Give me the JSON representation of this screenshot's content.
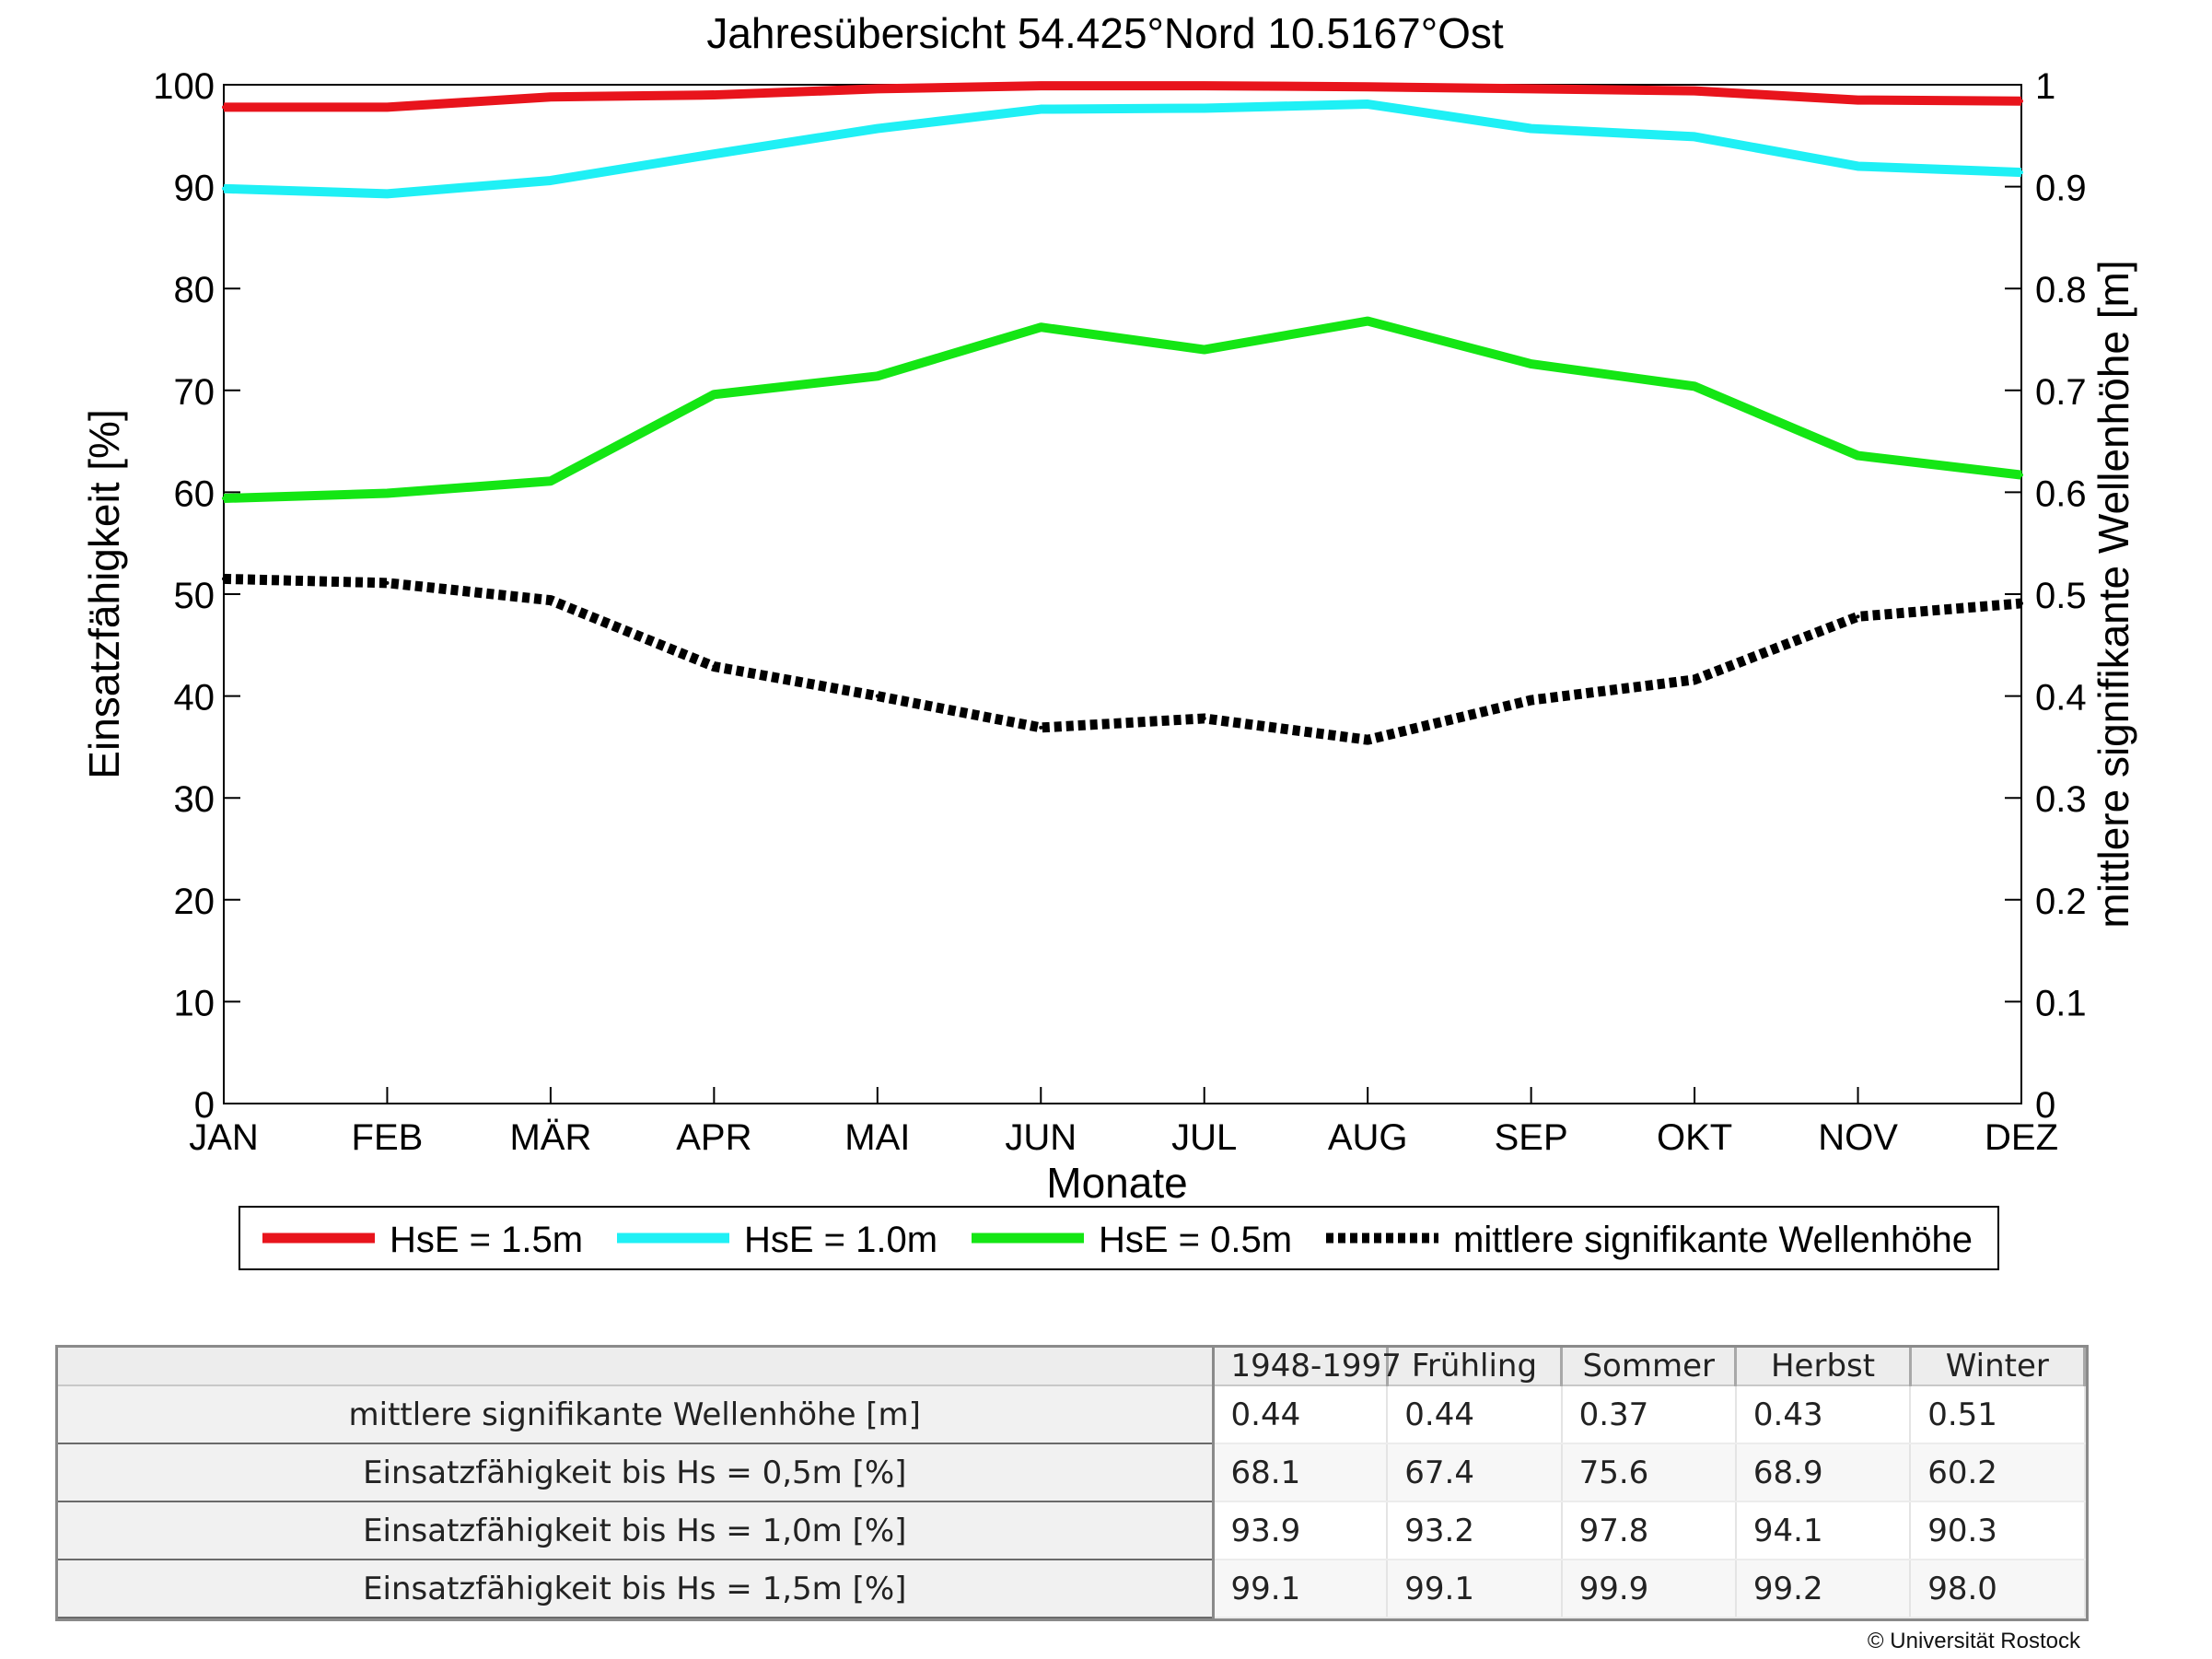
{
  "chart_data": {
    "type": "line",
    "title": "Jahresübersicht  54.425°Nord  10.5167°Ost",
    "xlabel": "Monate",
    "ylabel_left": "Einsatzfähigkeit [%]",
    "ylabel_right": "mittlere signifikante Wellenhöhe [m]",
    "categories": [
      "JAN",
      "FEB",
      "MÄR",
      "APR",
      "MAI",
      "JUN",
      "JUL",
      "AUG",
      "SEP",
      "OKT",
      "NOV",
      "DEZ"
    ],
    "ylim_left": [
      0,
      100
    ],
    "yticks_left": [
      "0",
      "10",
      "20",
      "30",
      "40",
      "50",
      "60",
      "70",
      "80",
      "90",
      "100"
    ],
    "ylim_right": [
      0,
      1
    ],
    "yticks_right": [
      "0",
      "0.1",
      "0.2",
      "0.3",
      "0.4",
      "0.5",
      "0.6",
      "0.7",
      "0.8",
      "0.9",
      "1"
    ],
    "grid": false,
    "legend_position": "bottom",
    "series": [
      {
        "name": "HsE = 1.5m",
        "axis": "left",
        "color": "#e8141c",
        "dashed": false,
        "values": [
          97.8,
          97.8,
          98.8,
          99.0,
          99.6,
          99.9,
          99.9,
          99.8,
          99.6,
          99.4,
          98.5,
          98.4
        ]
      },
      {
        "name": "HsE = 1.0m",
        "axis": "left",
        "color": "#1ff0f5",
        "dashed": false,
        "values": [
          89.8,
          89.3,
          90.6,
          93.2,
          95.7,
          97.6,
          97.7,
          98.1,
          95.7,
          94.9,
          92.0,
          91.4
        ]
      },
      {
        "name": "HsE = 0.5m",
        "axis": "left",
        "color": "#14e614",
        "dashed": false,
        "values": [
          59.4,
          59.9,
          61.1,
          69.6,
          71.4,
          76.2,
          74.0,
          76.8,
          72.6,
          70.4,
          63.6,
          61.7
        ]
      },
      {
        "name": "mittlere signifikante Wellenhöhe",
        "axis": "right",
        "color": "#000000",
        "dashed": true,
        "values": [
          0.515,
          0.511,
          0.494,
          0.429,
          0.4,
          0.369,
          0.378,
          0.357,
          0.396,
          0.416,
          0.478,
          0.491
        ]
      }
    ]
  },
  "table": {
    "columns": [
      "",
      "1948-1997",
      "Frühling",
      "Sommer",
      "Herbst",
      "Winter"
    ],
    "rows": [
      {
        "label": "mittlere signifikante Wellenhöhe [m]",
        "values": [
          "0.44",
          "0.44",
          "0.37",
          "0.43",
          "0.51"
        ]
      },
      {
        "label": "Einsatzfähigkeit bis Hs = 0,5m [%]",
        "values": [
          "68.1",
          "67.4",
          "75.6",
          "68.9",
          "60.2"
        ]
      },
      {
        "label": "Einsatzfähigkeit bis Hs = 1,0m [%]",
        "values": [
          "93.9",
          "93.2",
          "97.8",
          "94.1",
          "90.3"
        ]
      },
      {
        "label": "Einsatzfähigkeit bis Hs = 1,5m [%]",
        "values": [
          "99.1",
          "99.1",
          "99.9",
          "99.2",
          "98.0"
        ]
      }
    ]
  },
  "copyright": "© Universität Rostock"
}
